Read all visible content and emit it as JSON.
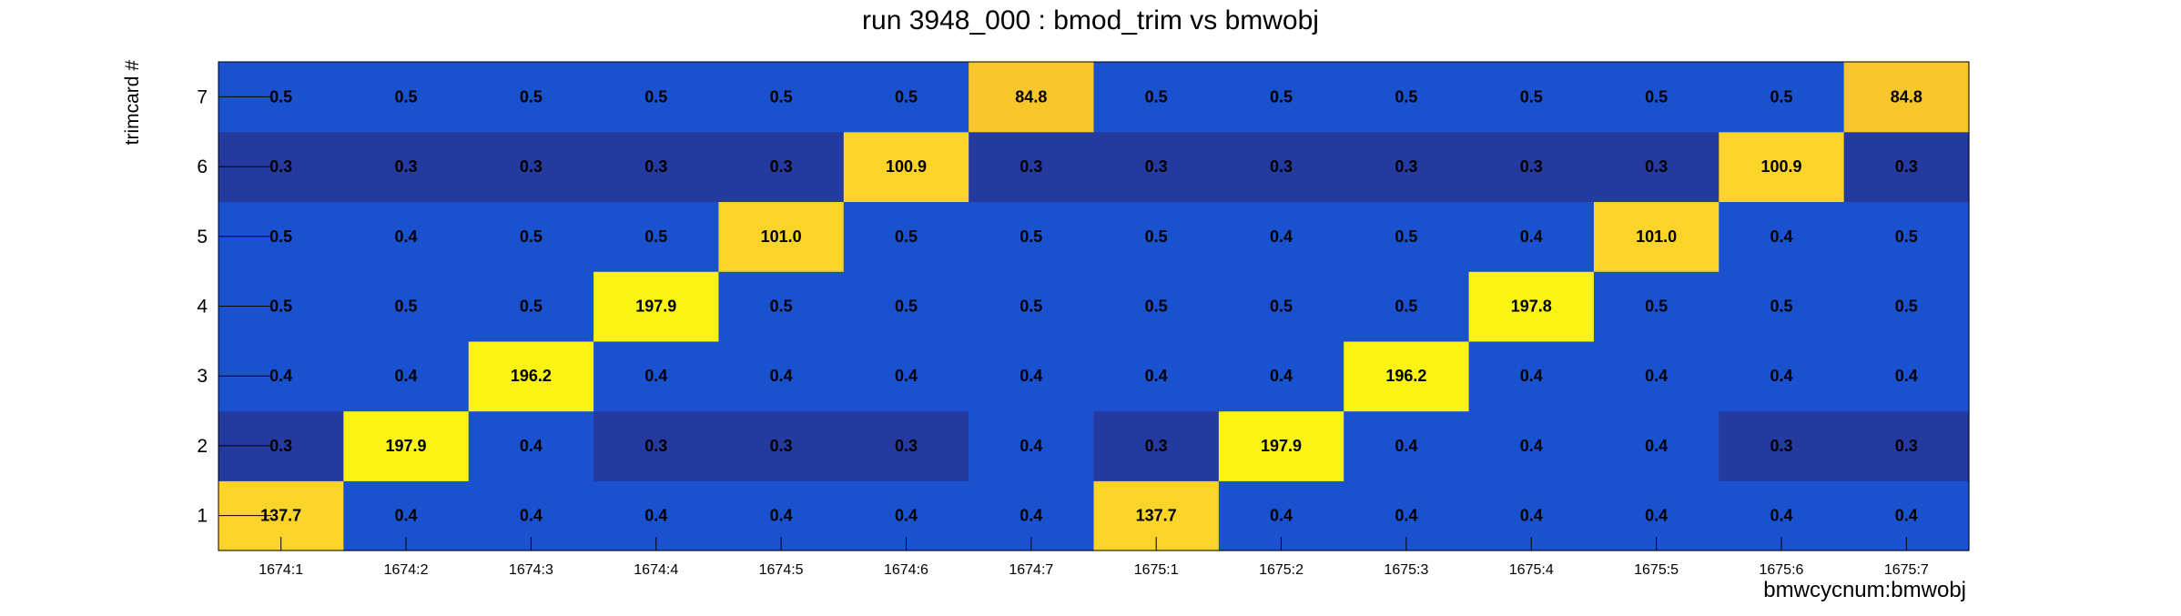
{
  "chart_data": {
    "type": "heatmap",
    "title": "run 3948_000 : bmod_trim vs bmwobj",
    "xlabel": "bmwcycnum:bmwobj",
    "ylabel": "trimcard #",
    "x_categories": [
      "1674:1",
      "1674:2",
      "1674:3",
      "1674:4",
      "1674:5",
      "1674:6",
      "1674:7",
      "1675:1",
      "1675:2",
      "1675:3",
      "1675:4",
      "1675:5",
      "1675:6",
      "1675:7"
    ],
    "y_categories": [
      "1",
      "2",
      "3",
      "4",
      "5",
      "6",
      "7"
    ],
    "values": [
      [
        137.7,
        0.4,
        0.4,
        0.4,
        0.4,
        0.4,
        0.4,
        137.7,
        0.4,
        0.4,
        0.4,
        0.4,
        0.4,
        0.4
      ],
      [
        0.3,
        197.9,
        0.4,
        0.3,
        0.3,
        0.3,
        0.4,
        0.3,
        197.9,
        0.4,
        0.4,
        0.4,
        0.3,
        0.3
      ],
      [
        0.4,
        0.4,
        196.2,
        0.4,
        0.4,
        0.4,
        0.4,
        0.4,
        0.4,
        196.2,
        0.4,
        0.4,
        0.4,
        0.4
      ],
      [
        0.5,
        0.5,
        0.5,
        197.9,
        0.5,
        0.5,
        0.5,
        0.5,
        0.5,
        0.5,
        197.8,
        0.5,
        0.5,
        0.5
      ],
      [
        0.5,
        0.4,
        0.5,
        0.5,
        101.0,
        0.5,
        0.5,
        0.5,
        0.4,
        0.5,
        0.4,
        101.0,
        0.4,
        0.5
      ],
      [
        0.3,
        0.3,
        0.3,
        0.3,
        0.3,
        100.9,
        0.3,
        0.3,
        0.3,
        0.3,
        0.3,
        0.3,
        100.9,
        0.3
      ],
      [
        0.5,
        0.5,
        0.5,
        0.5,
        0.5,
        0.5,
        84.8,
        0.5,
        0.5,
        0.5,
        0.5,
        0.5,
        0.5,
        84.8
      ]
    ],
    "colors": {
      "low": "#253a9e",
      "mid": "#1a51ce",
      "high_low": "#f6c62c",
      "high_mid": "#fbd42a",
      "high": "#f8f312",
      "text": "#000000"
    }
  }
}
